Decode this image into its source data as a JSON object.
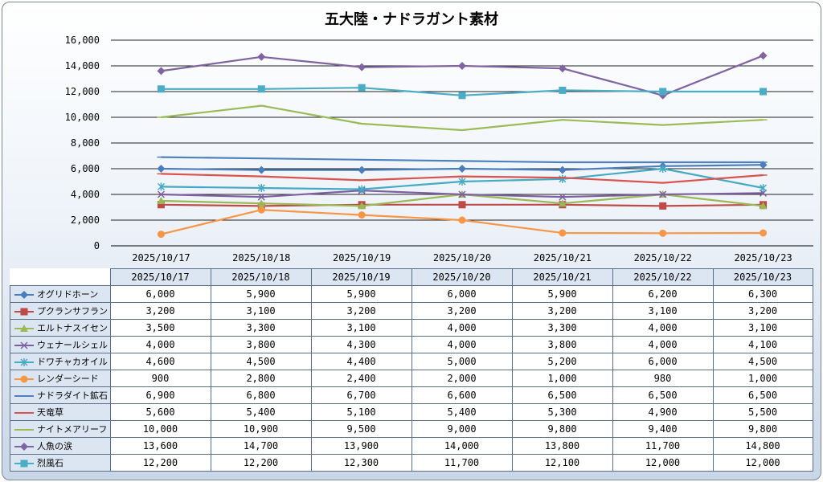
{
  "chart_data": {
    "type": "line",
    "title": "五大陸・ナドラガント素材",
    "categories": [
      "2025/10/17",
      "2025/10/18",
      "2025/10/19",
      "2025/10/20",
      "2025/10/21",
      "2025/10/22",
      "2025/10/23"
    ],
    "ylim": [
      0,
      16000
    ],
    "yticks": [
      "0",
      "2,000",
      "4,000",
      "6,000",
      "8,000",
      "10,000",
      "12,000",
      "14,000",
      "16,000"
    ],
    "grid": true,
    "legend": "table-left",
    "series": [
      {
        "name": "オグリドホーン",
        "color": "#4a7ebb",
        "marker": "diamond",
        "values": [
          6000,
          5900,
          5900,
          6000,
          5900,
          6200,
          6300
        ],
        "labels": [
          "6,000",
          "5,900",
          "5,900",
          "6,000",
          "5,900",
          "6,200",
          "6,300"
        ]
      },
      {
        "name": "プクランサフラン",
        "color": "#be4b48",
        "marker": "square",
        "values": [
          3200,
          3100,
          3200,
          3200,
          3200,
          3100,
          3200
        ],
        "labels": [
          "3,200",
          "3,100",
          "3,200",
          "3,200",
          "3,200",
          "3,100",
          "3,200"
        ]
      },
      {
        "name": "エルトナスイセン",
        "color": "#98b954",
        "marker": "triangle",
        "values": [
          3500,
          3300,
          3100,
          4000,
          3300,
          4000,
          3100
        ],
        "labels": [
          "3,500",
          "3,300",
          "3,100",
          "4,000",
          "3,300",
          "4,000",
          "3,100"
        ]
      },
      {
        "name": "ウェナールシェル",
        "color": "#7d60a0",
        "marker": "x",
        "values": [
          4000,
          3800,
          4300,
          4000,
          3800,
          4000,
          4100
        ],
        "labels": [
          "4,000",
          "3,800",
          "4,300",
          "4,000",
          "3,800",
          "4,000",
          "4,100"
        ]
      },
      {
        "name": "ドワチャカオイル",
        "color": "#46aac5",
        "marker": "star",
        "values": [
          4600,
          4500,
          4400,
          5000,
          5200,
          6000,
          4500
        ],
        "labels": [
          "4,600",
          "4,500",
          "4,400",
          "5,000",
          "5,200",
          "6,000",
          "4,500"
        ]
      },
      {
        "name": "レンダーシード",
        "color": "#f79646",
        "marker": "circle",
        "values": [
          900,
          2800,
          2400,
          2000,
          1000,
          980,
          1000
        ],
        "labels": [
          "900",
          "2,800",
          "2,400",
          "2,000",
          "1,000",
          "980",
          "1,000"
        ]
      },
      {
        "name": "ナドラダイト鉱石",
        "color": "#4f81bd",
        "marker": "dash",
        "values": [
          6900,
          6800,
          6700,
          6600,
          6500,
          6500,
          6500
        ],
        "labels": [
          "6,900",
          "6,800",
          "6,700",
          "6,600",
          "6,500",
          "6,500",
          "6,500"
        ]
      },
      {
        "name": "天竜草",
        "color": "#d9534f",
        "marker": "dash",
        "values": [
          5600,
          5400,
          5100,
          5400,
          5300,
          4900,
          5500
        ],
        "labels": [
          "5,600",
          "5,400",
          "5,100",
          "5,400",
          "5,300",
          "4,900",
          "5,500"
        ]
      },
      {
        "name": "ナイトメアリーフ",
        "color": "#9bbb59",
        "marker": "dash",
        "values": [
          10000,
          10900,
          9500,
          9000,
          9800,
          9400,
          9800
        ],
        "labels": [
          "10,000",
          "10,900",
          "9,500",
          "9,000",
          "9,800",
          "9,400",
          "9,800"
        ]
      },
      {
        "name": "人魚の涙",
        "color": "#8064a2",
        "marker": "diamond",
        "values": [
          13600,
          14700,
          13900,
          14000,
          13800,
          11700,
          14800
        ],
        "labels": [
          "13,600",
          "14,700",
          "13,900",
          "14,000",
          "13,800",
          "11,700",
          "14,800"
        ]
      },
      {
        "name": "烈風石",
        "color": "#4bacc6",
        "marker": "square",
        "values": [
          12200,
          12200,
          12300,
          11700,
          12100,
          12000,
          12000
        ],
        "labels": [
          "12,200",
          "12,200",
          "12,300",
          "11,700",
          "12,100",
          "12,000",
          "12,000"
        ]
      }
    ]
  }
}
